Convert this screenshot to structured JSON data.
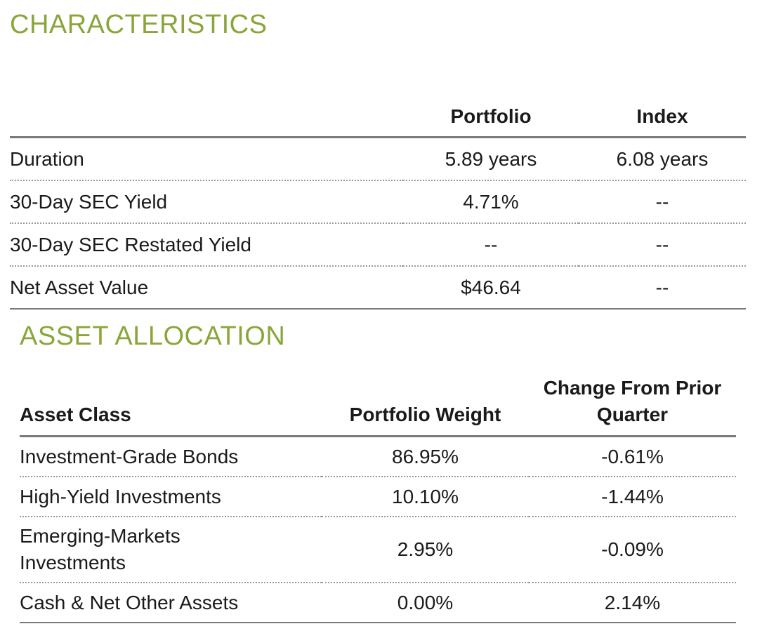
{
  "characteristics": {
    "title": "CHARACTERISTICS",
    "headers": {
      "label": "",
      "portfolio": "Portfolio",
      "index": "Index"
    },
    "rows": [
      {
        "label": "Duration",
        "portfolio": "5.89 years",
        "index": "6.08 years"
      },
      {
        "label": "30-Day SEC Yield",
        "portfolio": "4.71%",
        "index": "--"
      },
      {
        "label": "30-Day SEC Restated Yield",
        "portfolio": "--",
        "index": "--"
      },
      {
        "label": "Net Asset Value",
        "portfolio": "$46.64",
        "index": "--"
      }
    ]
  },
  "asset_allocation": {
    "title": "ASSET ALLOCATION",
    "headers": {
      "asset_class": "Asset Class",
      "portfolio_weight": "Portfolio Weight",
      "change_line1": "Change From Prior",
      "change_line2": "Quarter"
    },
    "rows": [
      {
        "label_line1": "Investment-Grade Bonds",
        "label_line2": "",
        "weight": "86.95%",
        "change": "-0.61%"
      },
      {
        "label_line1": "High-Yield Investments",
        "label_line2": "",
        "weight": "10.10%",
        "change": "-1.44%"
      },
      {
        "label_line1": "Emerging-Markets",
        "label_line2": "Investments",
        "weight": "2.95%",
        "change": "-0.09%"
      },
      {
        "label_line1": "Cash & Net Other Assets",
        "label_line2": "",
        "weight": "0.00%",
        "change": "2.14%"
      }
    ]
  },
  "colors": {
    "heading_green": "#8aa63a",
    "rule_gray": "#7a7a7a"
  }
}
